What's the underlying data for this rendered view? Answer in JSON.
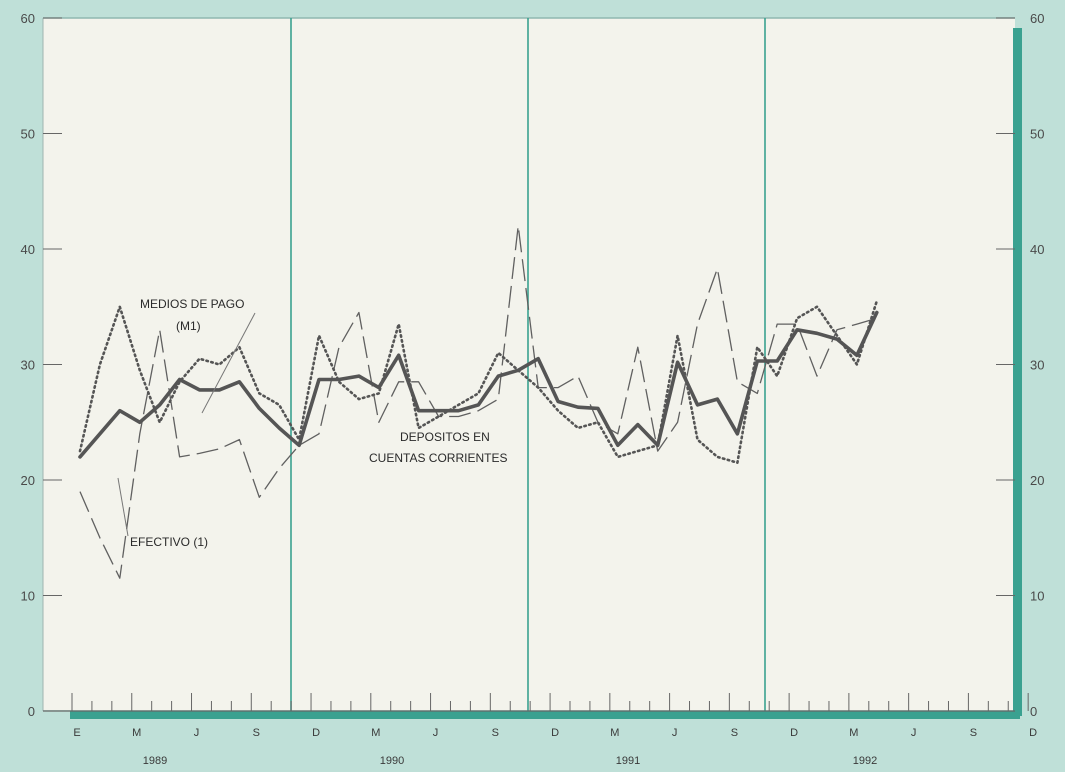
{
  "chart_data": {
    "type": "line",
    "title": "",
    "xlabel": "",
    "ylabel": "",
    "ylim": [
      0,
      60
    ],
    "y_ticks": [
      "0",
      "10",
      "20",
      "30",
      "40",
      "50",
      "60"
    ],
    "y_ticks_right": [
      "0",
      "10",
      "20",
      "30",
      "40",
      "50",
      "60"
    ],
    "x_month_labels": [
      "E",
      "M",
      "J",
      "S",
      "D",
      "M",
      "J",
      "S",
      "D",
      "M",
      "J",
      "S",
      "D",
      "M",
      "J",
      "S",
      "D"
    ],
    "x_year_labels": [
      "1989",
      "1990",
      "1991",
      "1992"
    ],
    "grid": "vertical lines at each December",
    "legend": "inline annotations",
    "annotations": [
      {
        "id": "m1_a",
        "text": "MEDIOS DE PAGO"
      },
      {
        "id": "m1_b",
        "text": "(M1)"
      },
      {
        "id": "dep_a",
        "text": "DEPOSITOS EN"
      },
      {
        "id": "dep_b",
        "text": "CUENTAS CORRIENTES"
      },
      {
        "id": "efe",
        "text": "EFECTIVO (1)"
      }
    ],
    "series": [
      {
        "id": "m1",
        "style": "thick-solid",
        "color": "#555555",
        "values": [
          22.0,
          24.0,
          26.0,
          25.0,
          26.5,
          28.7,
          27.8,
          27.8,
          28.5,
          26.2,
          24.5,
          23.0,
          28.7,
          28.7,
          29.0,
          28.0,
          30.8,
          26.0,
          26.0,
          26.0,
          26.5,
          29.0,
          29.5,
          30.5,
          26.8,
          26.3,
          26.2,
          23.0,
          24.8,
          23.0,
          30.2,
          26.5,
          27.0,
          24.0,
          30.3,
          30.3,
          33.0,
          32.7,
          32.2,
          30.8,
          34.5
        ]
      },
      {
        "id": "depositos",
        "style": "dotted",
        "color": "#555555",
        "values": [
          22.5,
          30.0,
          35.0,
          29.5,
          25.0,
          28.5,
          30.5,
          30.0,
          31.5,
          27.5,
          26.5,
          23.5,
          32.5,
          28.5,
          27.0,
          27.5,
          33.5,
          24.5,
          25.5,
          26.5,
          27.5,
          31.0,
          29.5,
          28.0,
          26.0,
          24.5,
          25.0,
          22.0,
          22.5,
          23.0,
          32.5,
          23.5,
          22.0,
          21.5,
          31.5,
          29.0,
          34.0,
          35.0,
          32.5,
          30.0,
          35.5
        ]
      },
      {
        "id": "efectivo",
        "style": "long-dash",
        "color": "#606060",
        "values": [
          19.0,
          15.0,
          11.5,
          24.0,
          33.0,
          22.0,
          22.3,
          22.7,
          23.5,
          18.5,
          21.0,
          23.0,
          24.0,
          31.5,
          34.5,
          25.0,
          28.5,
          28.5,
          25.5,
          25.5,
          26.0,
          27.0,
          42.0,
          28.0,
          28.0,
          29.0,
          25.0,
          24.0,
          31.5,
          22.5,
          25.0,
          33.5,
          38.3,
          28.5,
          27.5,
          33.5,
          33.5,
          29.0,
          33.0,
          33.5,
          34.0
        ]
      }
    ]
  }
}
